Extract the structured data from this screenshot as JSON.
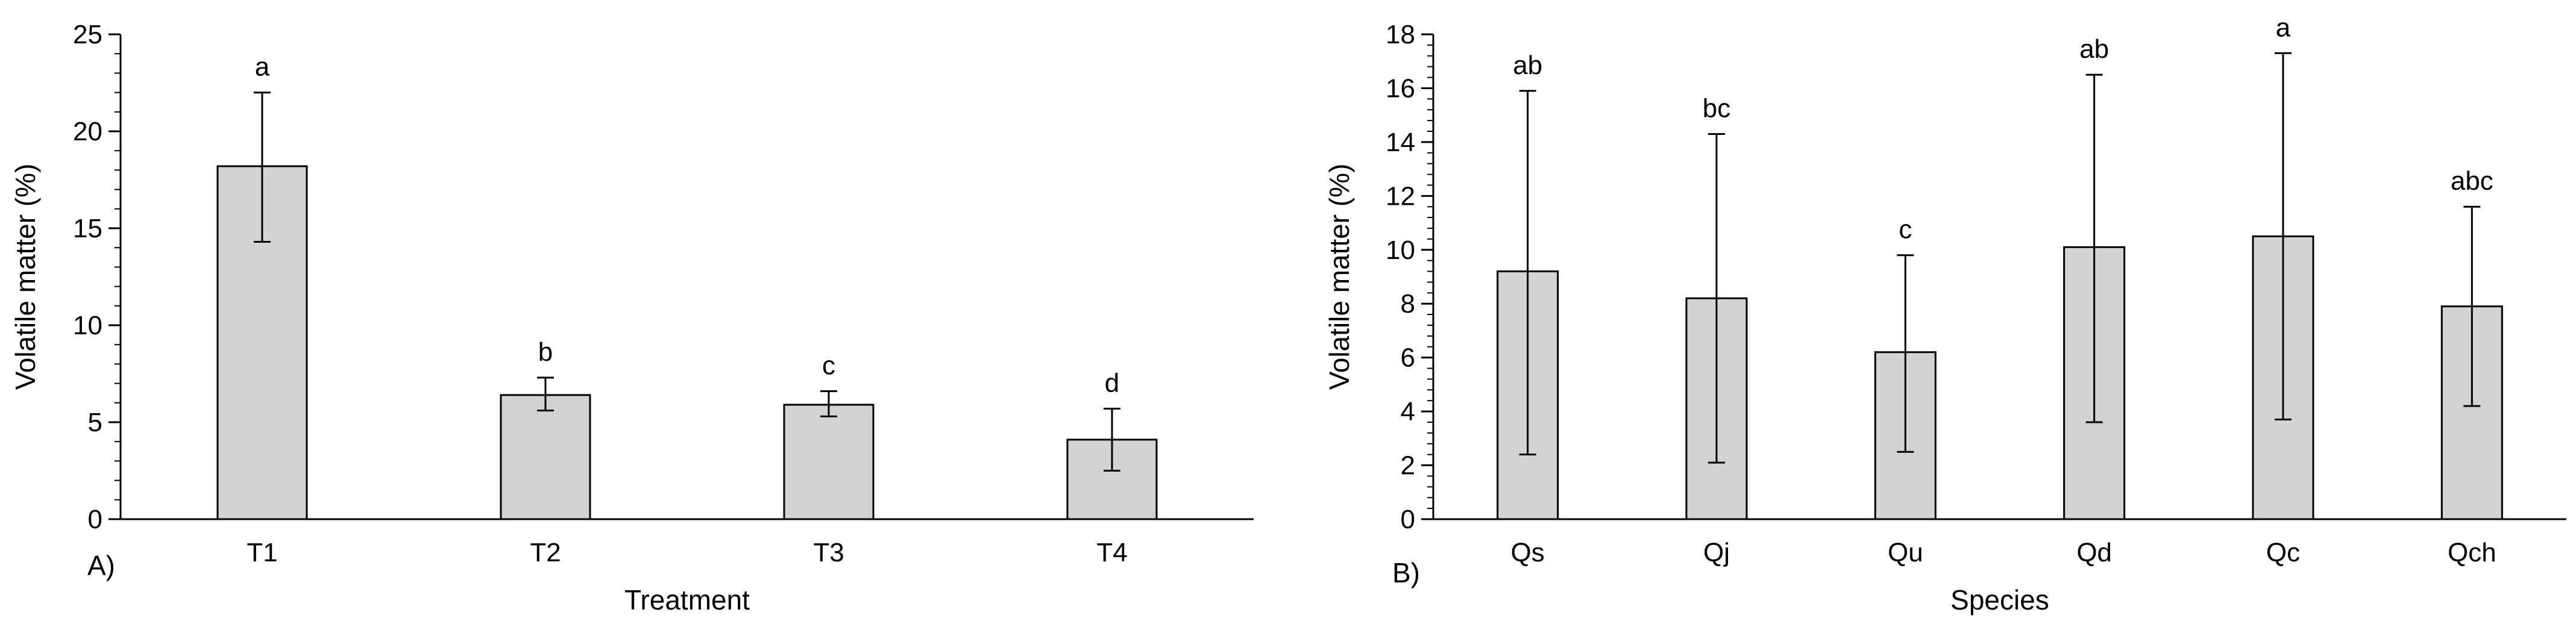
{
  "colors": {
    "bar_fill": "#d3d3d3",
    "bar_stroke": "#000000",
    "axis": "#000000",
    "background": "#ffffff"
  },
  "chart_data": [
    {
      "type": "bar",
      "panel_label": "A)",
      "title": "",
      "xlabel": "Treatment",
      "ylabel": "Volatile matter (%)",
      "categories": [
        "T1",
        "T2",
        "T3",
        "T4"
      ],
      "values": [
        18.2,
        6.4,
        5.9,
        4.1
      ],
      "error_low": [
        14.3,
        5.6,
        5.3,
        2.5
      ],
      "error_high": [
        22.0,
        7.3,
        6.6,
        5.7
      ],
      "significance_letters": [
        "a",
        "b",
        "c",
        "d"
      ],
      "ylim": [
        0,
        25
      ],
      "yticks": [
        0,
        5,
        10,
        15,
        20,
        25
      ],
      "y_minor_step": 1,
      "grid": false,
      "legend": "none"
    },
    {
      "type": "bar",
      "panel_label": "B)",
      "title": "",
      "xlabel": "Species",
      "ylabel": "Volatile matter (%)",
      "categories": [
        "Qs",
        "Qj",
        "Qu",
        "Qd",
        "Qc",
        "Qch"
      ],
      "values": [
        9.2,
        8.2,
        6.2,
        10.1,
        10.5,
        7.9
      ],
      "error_low": [
        2.4,
        2.1,
        2.5,
        3.6,
        3.7,
        4.2
      ],
      "error_high": [
        15.9,
        14.3,
        9.8,
        16.5,
        17.3,
        11.6
      ],
      "significance_letters": [
        "ab",
        "bc",
        "c",
        "ab",
        "a",
        "abc"
      ],
      "ylim": [
        0,
        18
      ],
      "yticks": [
        0,
        2,
        4,
        6,
        8,
        10,
        12,
        14,
        16,
        18
      ],
      "y_minor_step": 0.4,
      "grid": false,
      "legend": "none"
    }
  ]
}
